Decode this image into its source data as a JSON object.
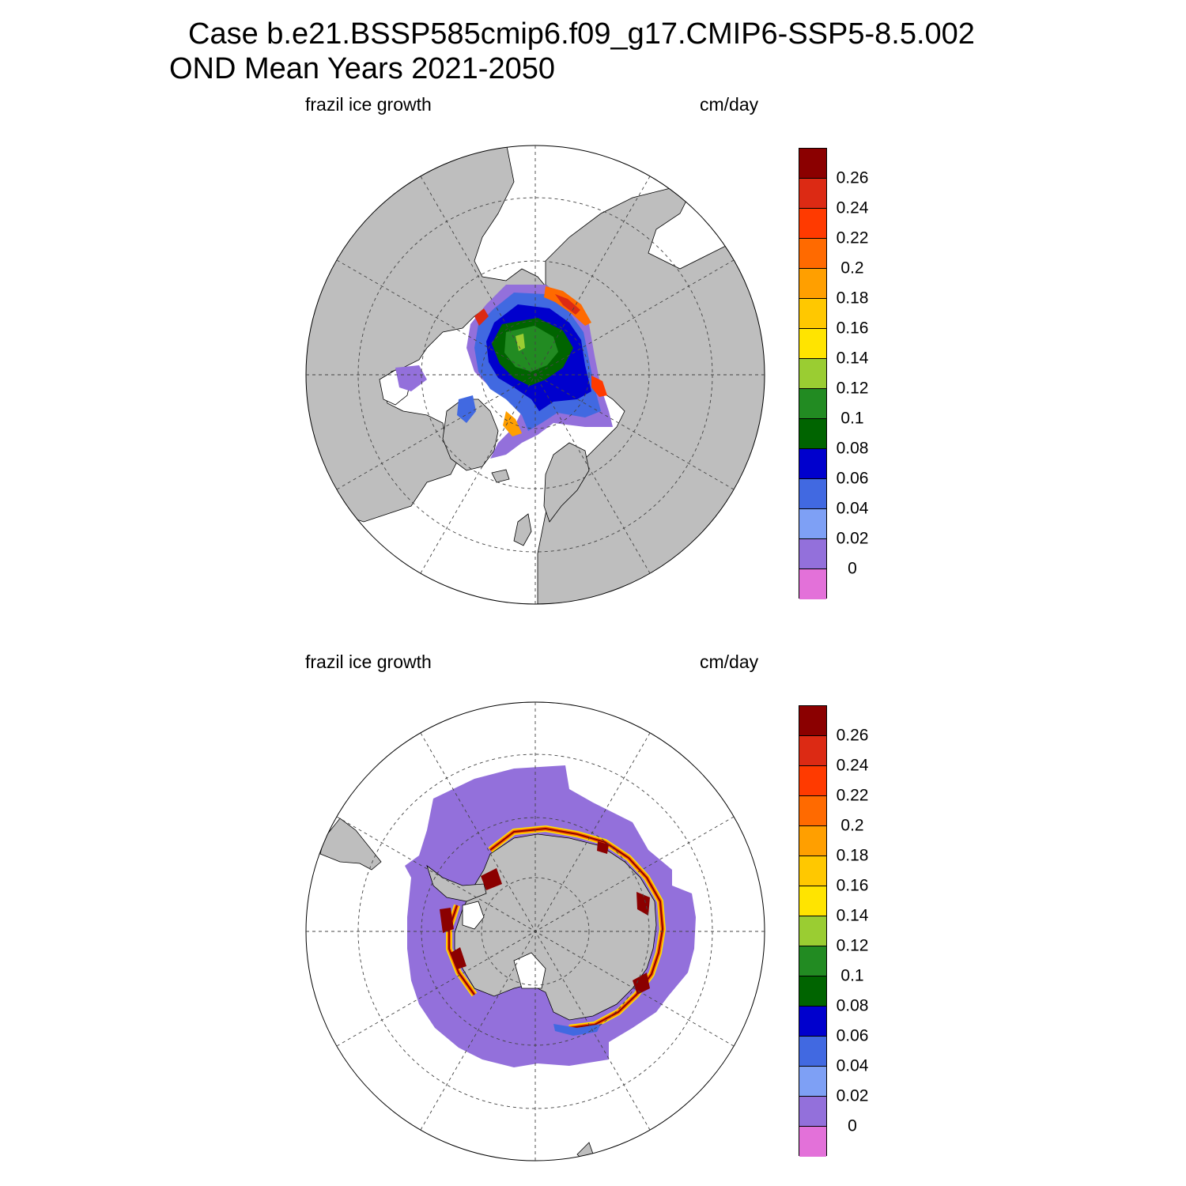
{
  "title": {
    "line1": "Case b.e21.BSSP585cmip6.f09_g17.CMIP6-SSP5-8.5.002",
    "line2": "OND Mean   Years 2021-2050"
  },
  "colors": {
    "land": "#bebebe",
    "no_data": "#ffffff",
    "scale": [
      "#e371d9",
      "#9370db",
      "#7ea0f5",
      "#4169e1",
      "#0000cd",
      "#006400",
      "#228b22",
      "#9acd32",
      "#ffe400",
      "#ffc800",
      "#ff9f00",
      "#ff6a00",
      "#ff3a00",
      "#dc2a14",
      "#8b0000"
    ]
  },
  "panels": [
    {
      "id": "north",
      "left_label": "frazil ice growth",
      "right_label": "cm/day",
      "hemisphere": "Northern",
      "colorbar": {
        "ticks": [
          "0",
          "0.02",
          "0.04",
          "0.06",
          "0.08",
          "0.1",
          "0.12",
          "0.14",
          "0.16",
          "0.18",
          "0.2",
          "0.22",
          "0.24",
          "0.26"
        ]
      }
    },
    {
      "id": "south",
      "left_label": "frazil ice growth",
      "right_label": "cm/day",
      "hemisphere": "Southern",
      "colorbar": {
        "ticks": [
          "0",
          "0.02",
          "0.04",
          "0.06",
          "0.08",
          "0.1",
          "0.12",
          "0.14",
          "0.16",
          "0.18",
          "0.2",
          "0.22",
          "0.24",
          "0.26"
        ]
      }
    }
  ]
}
